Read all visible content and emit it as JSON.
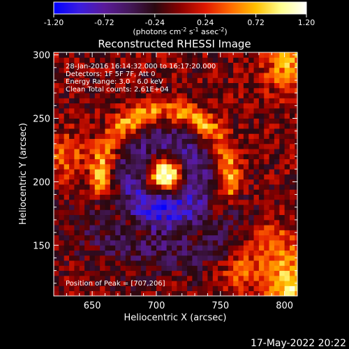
{
  "colorbar": {
    "ticks": [
      "-1.20",
      "-0.72",
      "-0.24",
      "0.24",
      "0.72",
      "1.20"
    ],
    "unit_label": {
      "prefix": "(photons cm",
      "exp1": "-2",
      "mid1": " s",
      "exp2": "-1",
      "mid2": " asec",
      "exp3": "-2",
      "suffix": ")"
    },
    "colors": [
      "#0000ff",
      "#3a1ce0",
      "#5a1a9a",
      "#44185a",
      "#2a0810",
      "#8a0000",
      "#e01800",
      "#ff6a00",
      "#ffc000",
      "#ffff90",
      "#ffffff"
    ]
  },
  "chart_data": {
    "type": "heatmap",
    "title": "Reconstructed RHESSI Image",
    "xlabel": "Heliocentric X (arcsec)",
    "ylabel": "Heliocentric Y (arcsec)",
    "xlim": [
      620,
      810
    ],
    "ylim": [
      110,
      302
    ],
    "x_ticks": [
      650,
      700,
      750,
      800
    ],
    "y_ticks": [
      150,
      200,
      250,
      300
    ],
    "x_tick_labels": [
      "650",
      "700",
      "750",
      "800"
    ],
    "y_tick_labels": [
      "150",
      "200",
      "250",
      "300"
    ],
    "color_range": [
      -1.2,
      1.2
    ],
    "grid": false,
    "peak": [
      707,
      206
    ],
    "annotations": [
      "28-Jan-2016 16:14:32.000 to 16:17:20.000",
      "Detectors: 1F 5F 7F, Att 0",
      "Energy Range: 3.0 - 6.0 keV",
      "Clean     Total counts: 2.61E+04"
    ],
    "peak_label": "Position of Peak = [707,206]"
  },
  "footer": {
    "timestamp": "17-May-2022 20:22"
  }
}
